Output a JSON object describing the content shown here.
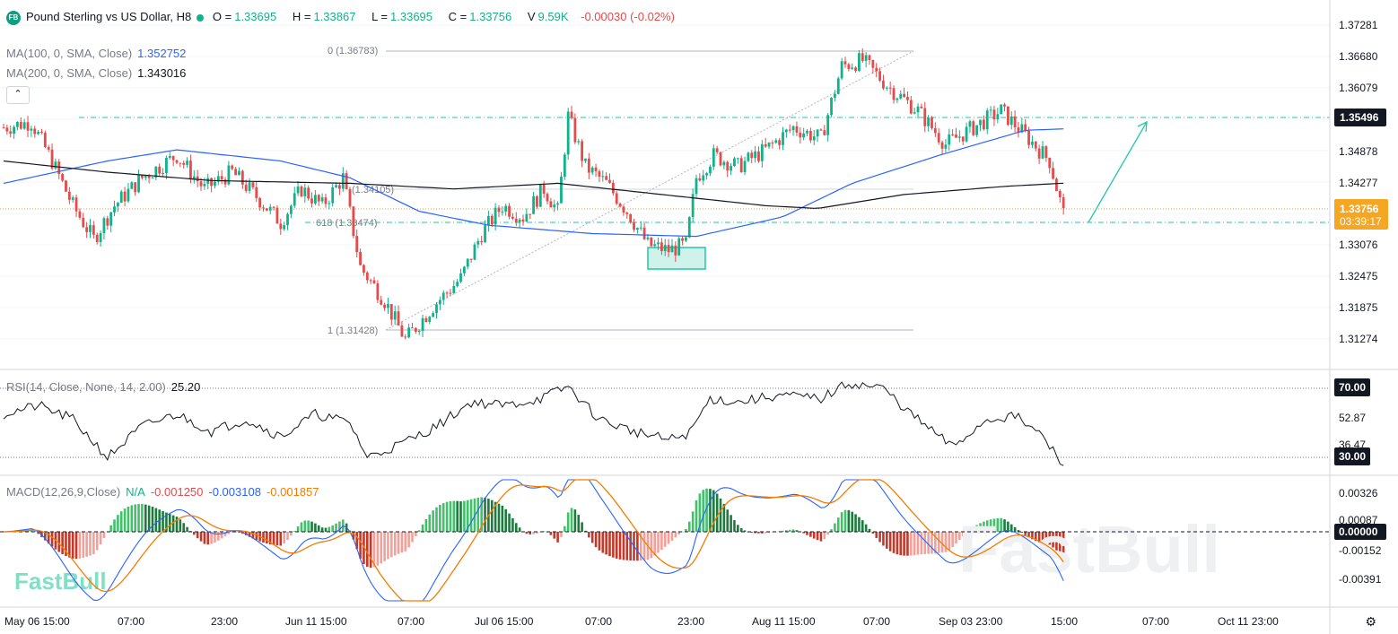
{
  "header": {
    "logo": "FB",
    "symbol": "Pound Sterling vs US Dollar, H8",
    "open_label": "O =",
    "open": "1.33695",
    "high_label": "H =",
    "high": "1.33867",
    "low_label": "L =",
    "low": "1.33695",
    "close_label": "C =",
    "close": "1.33756",
    "volume_label": "V",
    "volume": "9.59K",
    "change": "-0.00030 (-0.02%)"
  },
  "ma100": {
    "label": "MA(100, 0, SMA, Close)",
    "value": "1.352752",
    "color": "#2962ff"
  },
  "ma200": {
    "label": "MA(200, 0, SMA, Close)",
    "value": "1.343016",
    "color": "#131722"
  },
  "rsi": {
    "label": "RSI(14, Close, None, 14, 2.00)",
    "value": "25.20"
  },
  "macd": {
    "label": "MACD(12,26,9,Close)",
    "na": "N/A",
    "hist": "-0.001250",
    "macd": "-0.003108",
    "signal": "-0.001857"
  },
  "watermark_small": "FastBull",
  "watermark_big": "FastBull",
  "colors": {
    "up": "#0fb38a",
    "down": "#e64a4a",
    "ma100": "#2962ff",
    "ma200": "#131722",
    "signal": "#f57c00",
    "teal": "#26c6a6"
  },
  "chart_data": [
    {
      "type": "candlestick",
      "title": "Pound Sterling vs US Dollar, H8",
      "price_axis_ticks": [
        "1.37281",
        "1.36680",
        "1.36079",
        "1.35496",
        "1.34878",
        "1.34277",
        "1.33756",
        "1.33076",
        "1.32475",
        "1.31875",
        "1.31274"
      ],
      "ylim": [
        1.31,
        1.3755
      ],
      "last_price": "1.33756",
      "countdown": "03:39:17",
      "level_label": "1.35496",
      "time_axis_labels": [
        "May 06 15:00",
        "07:00",
        "23:00",
        "Jun 11 15:00",
        "07:00",
        "Jul 06 15:00",
        "07:00",
        "23:00",
        "Aug 11 15:00",
        "07:00",
        "Sep 03 23:00",
        "15:00",
        "07:00",
        "Oct 11 23:00"
      ],
      "fib_labels": [
        "0 (1.36783)",
        "0.5 (1.34105)",
        "0.618 (1.33474)",
        "1 (1.31428)"
      ],
      "fib_visible_text": [
        "0 (1.36783)",
        "(1.34105)",
        "618 (1.33474)",
        "1 (1.31428)"
      ],
      "key_points": [
        {
          "t": 0,
          "price": 1.353
        },
        {
          "t": 8,
          "price": 1.354
        },
        {
          "t": 14,
          "price": 1.347
        },
        {
          "t": 20,
          "price": 1.339
        },
        {
          "t": 26,
          "price": 1.333
        },
        {
          "t": 32,
          "price": 1.339
        },
        {
          "t": 40,
          "price": 1.344
        },
        {
          "t": 50,
          "price": 1.348
        },
        {
          "t": 58,
          "price": 1.342
        },
        {
          "t": 66,
          "price": 1.345
        },
        {
          "t": 74,
          "price": 1.34
        },
        {
          "t": 80,
          "price": 1.336
        },
        {
          "t": 86,
          "price": 1.342
        },
        {
          "t": 92,
          "price": 1.339
        },
        {
          "t": 98,
          "price": 1.344
        },
        {
          "t": 103,
          "price": 1.328
        },
        {
          "t": 110,
          "price": 1.322
        },
        {
          "t": 116,
          "price": 1.315
        },
        {
          "t": 124,
          "price": 1.321
        },
        {
          "t": 132,
          "price": 1.326
        },
        {
          "t": 138,
          "price": 1.334
        },
        {
          "t": 144,
          "price": 1.339
        },
        {
          "t": 150,
          "price": 1.337
        },
        {
          "t": 156,
          "price": 1.342
        },
        {
          "t": 160,
          "price": 1.338
        },
        {
          "t": 163,
          "price": 1.355
        },
        {
          "t": 168,
          "price": 1.346
        },
        {
          "t": 174,
          "price": 1.343
        },
        {
          "t": 180,
          "price": 1.338
        },
        {
          "t": 186,
          "price": 1.332
        },
        {
          "t": 192,
          "price": 1.331
        },
        {
          "t": 197,
          "price": 1.332
        },
        {
          "t": 200,
          "price": 1.344
        },
        {
          "t": 205,
          "price": 1.348
        },
        {
          "t": 212,
          "price": 1.346
        },
        {
          "t": 220,
          "price": 1.349
        },
        {
          "t": 228,
          "price": 1.353
        },
        {
          "t": 236,
          "price": 1.351
        },
        {
          "t": 242,
          "price": 1.364
        },
        {
          "t": 248,
          "price": 1.365
        },
        {
          "t": 256,
          "price": 1.36
        },
        {
          "t": 264,
          "price": 1.356
        },
        {
          "t": 272,
          "price": 1.35
        },
        {
          "t": 280,
          "price": 1.353
        },
        {
          "t": 288,
          "price": 1.356
        },
        {
          "t": 296,
          "price": 1.351
        },
        {
          "t": 302,
          "price": 1.347
        },
        {
          "t": 306,
          "price": 1.33756
        }
      ],
      "ma100_points": [
        {
          "t": 0,
          "price": 1.343
        },
        {
          "t": 30,
          "price": 1.347
        },
        {
          "t": 50,
          "price": 1.349
        },
        {
          "t": 80,
          "price": 1.347
        },
        {
          "t": 100,
          "price": 1.344
        },
        {
          "t": 120,
          "price": 1.338
        },
        {
          "t": 140,
          "price": 1.3355
        },
        {
          "t": 170,
          "price": 1.334
        },
        {
          "t": 200,
          "price": 1.3335
        },
        {
          "t": 225,
          "price": 1.337
        },
        {
          "t": 245,
          "price": 1.343
        },
        {
          "t": 270,
          "price": 1.348
        },
        {
          "t": 295,
          "price": 1.3525
        },
        {
          "t": 306,
          "price": 1.35275
        }
      ],
      "ma200_points": [
        {
          "t": 0,
          "price": 1.347
        },
        {
          "t": 30,
          "price": 1.345
        },
        {
          "t": 60,
          "price": 1.3435
        },
        {
          "t": 100,
          "price": 1.343
        },
        {
          "t": 130,
          "price": 1.342
        },
        {
          "t": 160,
          "price": 1.343
        },
        {
          "t": 190,
          "price": 1.341
        },
        {
          "t": 220,
          "price": 1.339
        },
        {
          "t": 235,
          "price": 1.3385
        },
        {
          "t": 260,
          "price": 1.341
        },
        {
          "t": 290,
          "price": 1.3425
        },
        {
          "t": 306,
          "price": 1.343016
        }
      ],
      "rsi_ticks": [
        "70.00",
        "52.87",
        "36.47",
        "30.00"
      ],
      "rsi_key_points": [
        {
          "t": 0,
          "v": 55
        },
        {
          "t": 10,
          "v": 60
        },
        {
          "t": 20,
          "v": 52
        },
        {
          "t": 30,
          "v": 30
        },
        {
          "t": 40,
          "v": 48
        },
        {
          "t": 50,
          "v": 55
        },
        {
          "t": 60,
          "v": 45
        },
        {
          "t": 70,
          "v": 52
        },
        {
          "t": 80,
          "v": 42
        },
        {
          "t": 90,
          "v": 55
        },
        {
          "t": 100,
          "v": 50
        },
        {
          "t": 105,
          "v": 30
        },
        {
          "t": 115,
          "v": 38
        },
        {
          "t": 125,
          "v": 48
        },
        {
          "t": 135,
          "v": 62
        },
        {
          "t": 145,
          "v": 60
        },
        {
          "t": 155,
          "v": 64
        },
        {
          "t": 163,
          "v": 71
        },
        {
          "t": 172,
          "v": 52
        },
        {
          "t": 182,
          "v": 45
        },
        {
          "t": 192,
          "v": 40
        },
        {
          "t": 198,
          "v": 44
        },
        {
          "t": 204,
          "v": 64
        },
        {
          "t": 212,
          "v": 62
        },
        {
          "t": 224,
          "v": 66
        },
        {
          "t": 236,
          "v": 64
        },
        {
          "t": 244,
          "v": 73
        },
        {
          "t": 254,
          "v": 70
        },
        {
          "t": 262,
          "v": 55
        },
        {
          "t": 274,
          "v": 36
        },
        {
          "t": 284,
          "v": 52
        },
        {
          "t": 292,
          "v": 54
        },
        {
          "t": 300,
          "v": 42
        },
        {
          "t": 306,
          "v": 25.2
        }
      ],
      "macd_ticks": [
        "0.00326",
        "0.00087",
        "0.00000",
        "-0.00152",
        "-0.00391"
      ]
    }
  ]
}
